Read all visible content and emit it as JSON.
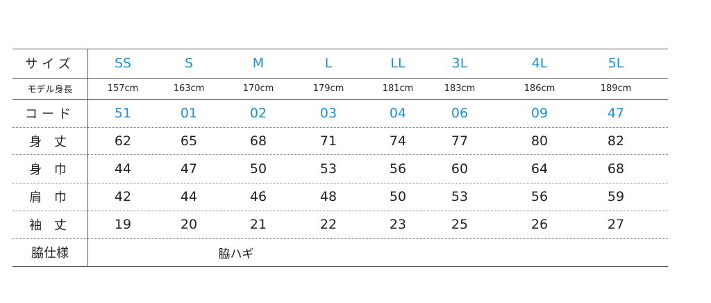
{
  "table": {
    "header": {
      "label": "サイズ",
      "cells": [
        "SS",
        "S",
        "M",
        "L",
        "LL",
        "3L",
        "4L",
        "5L"
      ]
    },
    "rows": [
      {
        "label": "モデル身長",
        "cells": [
          "157cm",
          "163cm",
          "170cm",
          "179cm",
          "181cm",
          "183cm",
          "186cm",
          "189cm"
        ]
      },
      {
        "label": "コード",
        "cells": [
          "51",
          "01",
          "02",
          "03",
          "04",
          "06",
          "09",
          "47"
        ]
      },
      {
        "label": "身 丈",
        "cells": [
          "62",
          "65",
          "68",
          "71",
          "74",
          "77",
          "80",
          "82"
        ]
      },
      {
        "label": "身 巾",
        "cells": [
          "44",
          "47",
          "50",
          "53",
          "56",
          "60",
          "64",
          "68"
        ]
      },
      {
        "label": "肩 巾",
        "cells": [
          "42",
          "44",
          "46",
          "48",
          "50",
          "53",
          "56",
          "59"
        ]
      },
      {
        "label": "袖 丈",
        "cells": [
          "19",
          "20",
          "21",
          "22",
          "23",
          "25",
          "26",
          "27"
        ]
      }
    ],
    "footer": {
      "label": "脇仕様",
      "value": "脇ハギ"
    }
  }
}
